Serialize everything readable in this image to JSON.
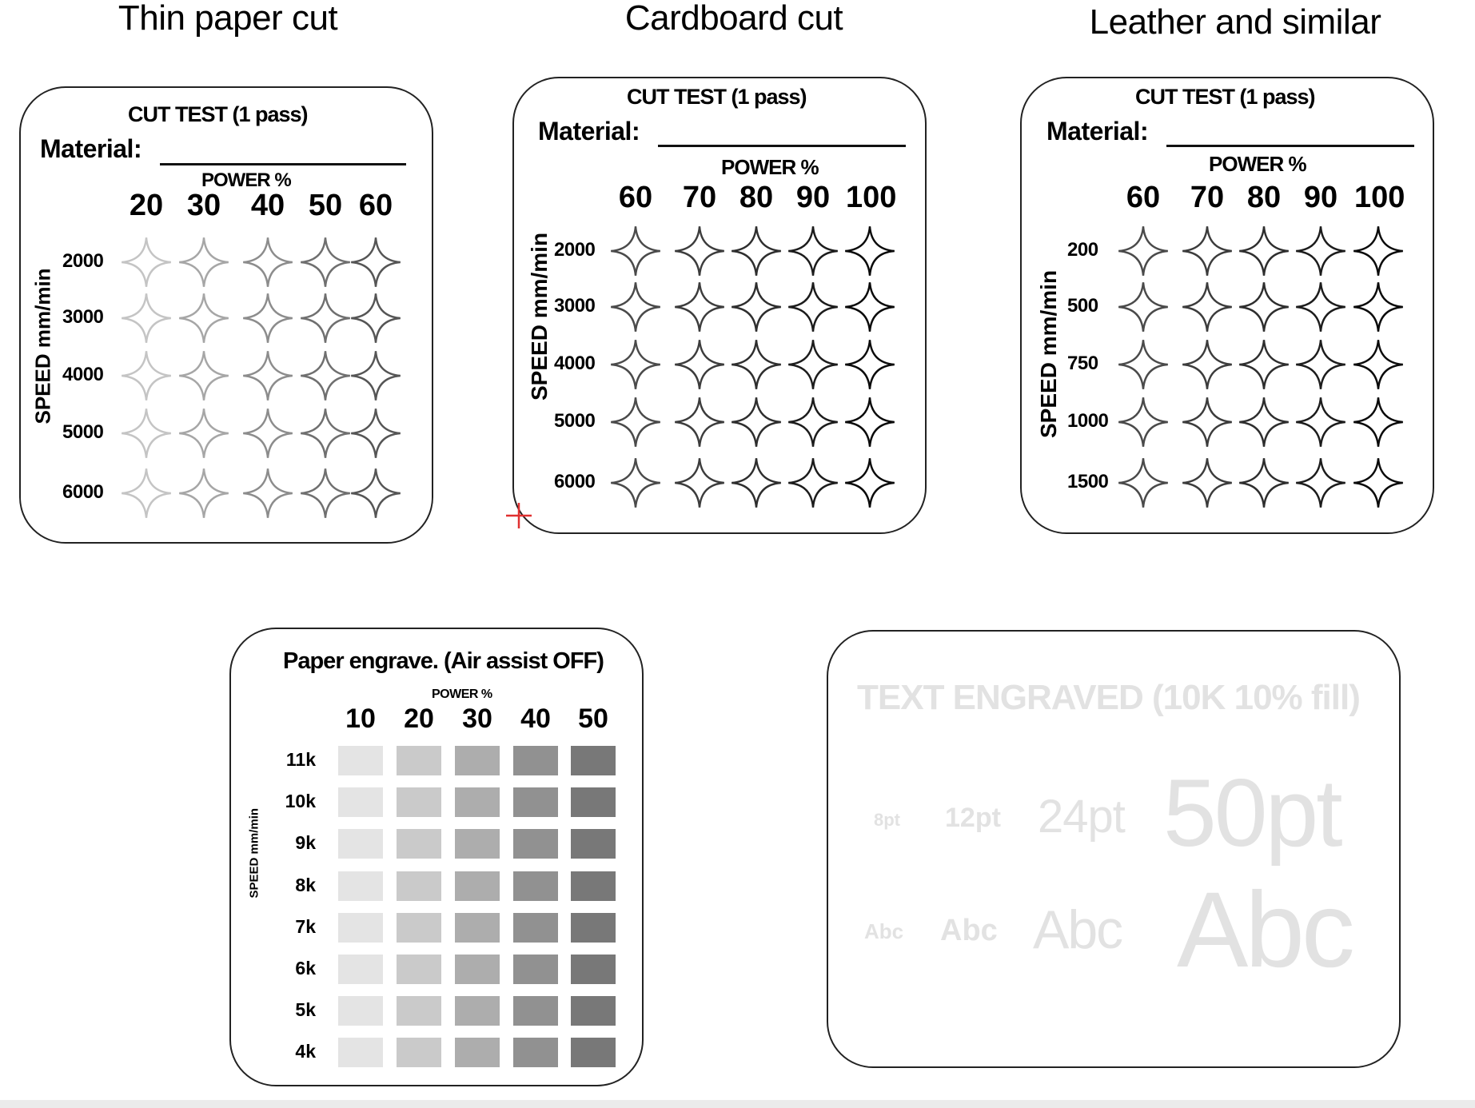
{
  "panels": [
    {
      "section_title": "Thin paper cut",
      "test_title": "CUT TEST (1 pass)",
      "material_label": "Material:",
      "power_label": "POWER %",
      "speed_label": "SPEED mm/min",
      "power_values": [
        "20",
        "30",
        "40",
        "50",
        "60"
      ],
      "speed_values": [
        "2000",
        "3000",
        "4000",
        "5000",
        "6000"
      ],
      "star_colors": [
        "#c4c4c4",
        "#a6a6a6",
        "#8c8c8c",
        "#6f6f6f",
        "#555555"
      ]
    },
    {
      "section_title": "Cardboard cut",
      "test_title": "CUT TEST (1 pass)",
      "material_label": "Material:",
      "power_label": "POWER %",
      "speed_label": "SPEED mm/min",
      "power_values": [
        "60",
        "70",
        "80",
        "90",
        "100"
      ],
      "speed_values": [
        "2000",
        "3000",
        "4000",
        "5000",
        "6000"
      ],
      "star_colors": [
        "#4a4a4a",
        "#3c3c3c",
        "#2e2e2e",
        "#1c1c1c",
        "#0a0a0a"
      ]
    },
    {
      "section_title": "Leather and similar",
      "test_title": "CUT TEST (1 pass)",
      "material_label": "Material:",
      "power_label": "POWER %",
      "speed_label": "SPEED mm/min",
      "power_values": [
        "60",
        "70",
        "80",
        "90",
        "100"
      ],
      "speed_values": [
        "200",
        "500",
        "750",
        "1000",
        "1500"
      ],
      "star_colors": [
        "#4a4a4a",
        "#3c3c3c",
        "#2e2e2e",
        "#1c1c1c",
        "#0a0a0a"
      ]
    }
  ],
  "engrave": {
    "title": "Paper engrave. (Air assist OFF)",
    "power_label": "POWER %",
    "speed_label": "SPEED mm/min",
    "power_values": [
      "10",
      "20",
      "30",
      "40",
      "50"
    ],
    "speed_values": [
      "11k",
      "10k",
      "9k",
      "8k",
      "7k",
      "6k",
      "5k",
      "4k"
    ],
    "swatch_colors": [
      "#e4e4e4",
      "#cacaca",
      "#adadad",
      "#919191",
      "#787878"
    ]
  },
  "text_panel": {
    "title": "TEXT ENGRAVED (10K 10% fill)",
    "size_labels": [
      "8pt",
      "12pt",
      "24pt",
      "50pt"
    ],
    "samples": [
      "Abc",
      "Abc",
      "Abc",
      "Abc"
    ],
    "text_color": "#e2e2e2"
  },
  "colors": {
    "border": "#222222",
    "marker": "#e03030"
  }
}
